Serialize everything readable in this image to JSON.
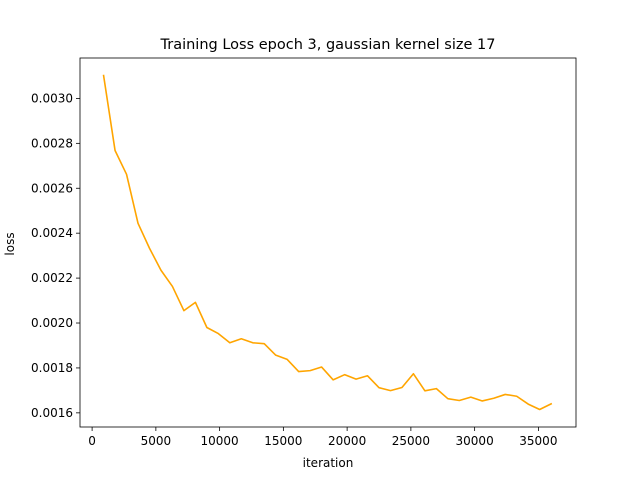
{
  "chart_data": {
    "type": "line",
    "title": "Training Loss epoch 3, gaussian kernel size 17",
    "xlabel": "iteration",
    "ylabel": "loss",
    "xlim": [
      -950,
      37950
    ],
    "ylim": [
      0.001537,
      0.00318
    ],
    "xticks": [
      0,
      5000,
      10000,
      15000,
      20000,
      25000,
      30000,
      35000
    ],
    "xtick_labels": [
      "0",
      "5000",
      "10000",
      "15000",
      "20000",
      "25000",
      "30000",
      "35000"
    ],
    "yticks": [
      0.0016,
      0.0018,
      0.002,
      0.0022,
      0.0024,
      0.0026,
      0.0028,
      0.003
    ],
    "ytick_labels": [
      "0.0016",
      "0.0018",
      "0.0020",
      "0.0022",
      "0.0024",
      "0.0026",
      "0.0028",
      "0.0030"
    ],
    "grid": false,
    "series": [
      {
        "color": "#FFA500",
        "x": [
          900,
          1800,
          2700,
          3600,
          4500,
          5400,
          6300,
          7200,
          8100,
          9000,
          9900,
          10800,
          11700,
          12600,
          13500,
          14400,
          15300,
          16200,
          17100,
          18000,
          18900,
          19800,
          20700,
          21600,
          22500,
          23400,
          24300,
          25200,
          26100,
          27000,
          27900,
          28800,
          29700,
          30600,
          31500,
          32400,
          33300,
          34200,
          35100,
          36000
        ],
        "y": [
          0.003102,
          0.002768,
          0.002662,
          0.002444,
          0.002333,
          0.002235,
          0.002163,
          0.002055,
          0.002092,
          0.00198,
          0.001953,
          0.001912,
          0.00193,
          0.001912,
          0.001908,
          0.001857,
          0.001838,
          0.001784,
          0.001788,
          0.001804,
          0.001747,
          0.00177,
          0.00175,
          0.001765,
          0.001712,
          0.001699,
          0.001713,
          0.001774,
          0.001698,
          0.001708,
          0.001663,
          0.001655,
          0.00167,
          0.001653,
          0.001665,
          0.001682,
          0.001674,
          0.001639,
          0.001615,
          0.00164
        ]
      }
    ]
  }
}
